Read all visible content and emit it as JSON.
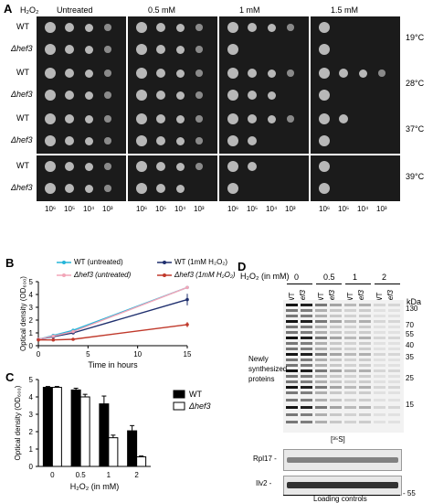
{
  "panel_a": {
    "letter": "A",
    "h2o2_label": "H₂O₂",
    "conditions": [
      "Untreated",
      "0.5 mM",
      "1 mM",
      "1.5 mM"
    ],
    "temperatures": [
      "19°C",
      "28°C",
      "37°C",
      "39°C"
    ],
    "strains": [
      "WT",
      "Δhef3"
    ],
    "dilutions": [
      "10⁶",
      "10⁵",
      "10⁴",
      "10³"
    ]
  },
  "panel_b": {
    "letter": "B",
    "legend": [
      {
        "label": "WT (untreated)",
        "color": "#25b5d9"
      },
      {
        "label": "WT (1mM H₂O₂)",
        "color": "#1f2f6e"
      },
      {
        "label": "Δhef3 (untreated)",
        "color": "#f2a6b8"
      },
      {
        "label": "Δhef3 (1mM H₂O₂)",
        "color": "#c0392b"
      }
    ],
    "ylabel": "Optical density (OD₆₀₀)",
    "xlabel": "Time in hours"
  },
  "panel_c": {
    "letter": "C",
    "ylabel": "Optical density (OD₆₀₀)",
    "xlabel": "H₂O₂ (in mM)",
    "legend": [
      "WT",
      "Δhef3"
    ]
  },
  "panel_d": {
    "letter": "D",
    "h2o2_label": "H₂O₂ (in mM)",
    "doses": [
      "0",
      "0.5",
      "1",
      "2"
    ],
    "lanes": [
      "WT",
      "Δhef3"
    ],
    "kda_label": "kDa",
    "markers": [
      "130",
      "70",
      "55",
      "40",
      "35",
      "25",
      "15"
    ],
    "newly_label": "Newly synthesized proteins",
    "s35_label": "[³⁵S]",
    "rpl17": "Rpl17 -",
    "ilv2": "Ilv2 -",
    "marker_55": "- 55",
    "loading": "Loading controls"
  },
  "chart_data": [
    {
      "type": "line",
      "x": [
        0,
        1.5,
        3.5,
        15
      ],
      "series": [
        {
          "name": "WT (untreated)",
          "values": [
            0.5,
            0.8,
            1.2,
            4.55
          ]
        },
        {
          "name": "WT (1mM H₂O₂)",
          "values": [
            0.5,
            0.7,
            1.0,
            3.6
          ]
        },
        {
          "name": "Δhef3 (untreated)",
          "values": [
            0.5,
            0.75,
            1.1,
            4.55
          ]
        },
        {
          "name": "Δhef3 (1mM H₂O₂)",
          "values": [
            0.45,
            0.45,
            0.5,
            1.65
          ]
        }
      ],
      "errors": [
        [
          0.02,
          0.05,
          0.05,
          0.05
        ],
        [
          0.02,
          0.05,
          0.1,
          0.45
        ],
        [
          0.02,
          0.05,
          0.05,
          0.05
        ],
        [
          0.02,
          0.03,
          0.05,
          0.2
        ]
      ],
      "xlabel": "Time in hours",
      "ylabel": "Optical density (OD₆₀₀)",
      "xlim": [
        0,
        15
      ],
      "ylim": [
        0,
        5
      ],
      "xticks": [
        0,
        5,
        10,
        15
      ],
      "yticks": [
        0,
        1,
        2,
        3,
        4,
        5
      ]
    },
    {
      "type": "bar",
      "categories": [
        "0",
        "0.5",
        "1",
        "2"
      ],
      "series": [
        {
          "name": "WT",
          "values": [
            4.55,
            4.4,
            3.6,
            2.05
          ]
        },
        {
          "name": "Δhef3",
          "values": [
            4.55,
            4.0,
            1.65,
            0.55
          ]
        }
      ],
      "errors": [
        [
          0.05,
          0.1,
          0.45,
          0.3
        ],
        [
          0.05,
          0.15,
          0.15,
          0.05
        ]
      ],
      "xlabel": "H₂O₂ (in mM)",
      "ylabel": "Optical density (OD₆₀₀)",
      "ylim": [
        0,
        5
      ],
      "yticks": [
        0,
        1,
        2,
        3,
        4,
        5
      ]
    }
  ]
}
